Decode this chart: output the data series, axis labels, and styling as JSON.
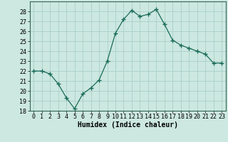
{
  "x": [
    0,
    1,
    2,
    3,
    4,
    5,
    6,
    7,
    8,
    9,
    10,
    11,
    12,
    13,
    14,
    15,
    16,
    17,
    18,
    19,
    20,
    21,
    22,
    23
  ],
  "y": [
    22.0,
    22.0,
    21.7,
    20.7,
    19.3,
    18.2,
    19.7,
    20.3,
    21.1,
    23.0,
    25.8,
    27.2,
    28.1,
    27.5,
    27.7,
    28.2,
    26.7,
    25.1,
    24.6,
    24.3,
    24.0,
    23.7,
    22.8,
    22.8
  ],
  "line_color": "#1a6b5a",
  "marker": "+",
  "marker_size": 4,
  "bg_color": "#cce8e0",
  "grid_color": "#aacfc8",
  "xlabel": "Humidex (Indice chaleur)",
  "ylim": [
    18,
    29
  ],
  "xlim": [
    -0.5,
    23.5
  ],
  "yticks": [
    18,
    19,
    20,
    21,
    22,
    23,
    24,
    25,
    26,
    27,
    28
  ],
  "xticks": [
    0,
    1,
    2,
    3,
    4,
    5,
    6,
    7,
    8,
    9,
    10,
    11,
    12,
    13,
    14,
    15,
    16,
    17,
    18,
    19,
    20,
    21,
    22,
    23
  ],
  "xlabel_fontsize": 7,
  "tick_fontsize": 6
}
